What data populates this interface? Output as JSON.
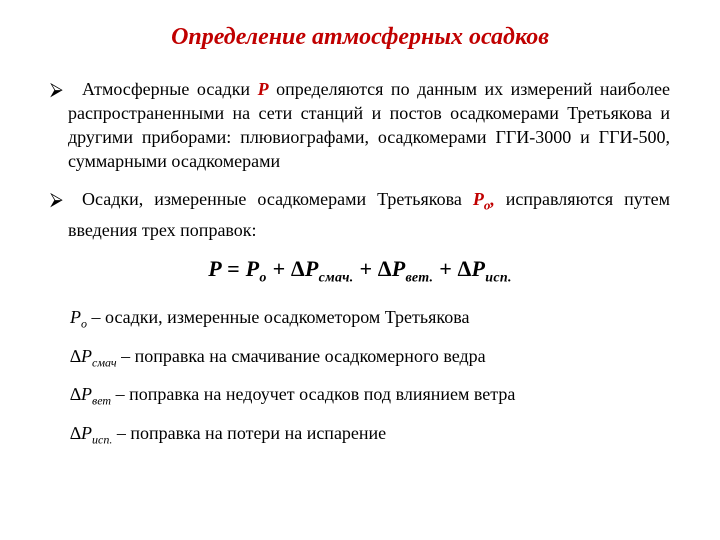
{
  "colors": {
    "title": "#c00000",
    "symbol": "#c00000",
    "text": "#000000",
    "background": "#ffffff"
  },
  "fonts": {
    "family": "Times New Roman",
    "title_size_pt": 24,
    "body_size_pt": 18,
    "formula_size_pt": 22
  },
  "title": "Определение атмосферных осадков",
  "bullet_marker": "⮚",
  "bullets": [
    {
      "pre": "Атмосферные осадки ",
      "symbol": "P",
      "post": " определяются по данным их измерений наиболее распространенными на сети станций и постов осадкомерами Третьякова и другими приборами: плювиографами, осадкомерами ГГИ-3000  и ГГИ-500, суммарными осадкомерами"
    },
    {
      "pre": "Осадки, измеренные осадкомерами Третьякова ",
      "symbol": "P",
      "symbol_sub": "о",
      "post_after_symbol": ", ",
      "post": "исправляются путем введения трех поправок:"
    }
  ],
  "formula": {
    "lhs": "P",
    "eq": " = ",
    "terms": [
      {
        "base": "P",
        "sub": "о"
      },
      {
        "base": "∆P",
        "sub": "смач."
      },
      {
        "base": "∆P",
        "sub": "вет."
      },
      {
        "base": "∆P",
        "sub": "исп."
      }
    ],
    "plus": " + "
  },
  "definitions": [
    {
      "base": "P",
      "sub": "о",
      "dash": " – ",
      "text": "осадки, измеренные осадкометором Третьякова"
    },
    {
      "base": "∆P",
      "sub": "смач",
      "dash": " – ",
      "text": "поправка на смачивание осадкомерного ведра"
    },
    {
      "base": "∆P",
      "sub": "вет",
      "dash": " – ",
      "text": "поправка на недоучет осадков под влиянием ветра"
    },
    {
      "base": "∆P",
      "sub": "исп.",
      "dash": " – ",
      "text": "поправка на потери на испарение"
    }
  ]
}
